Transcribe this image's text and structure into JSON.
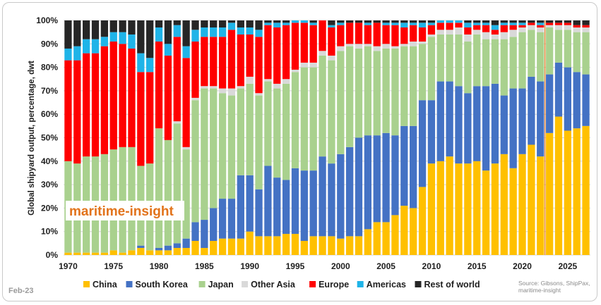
{
  "footer": {
    "date": "Feb-23",
    "source_line1": "Source: Gibsons, ShipPax,",
    "source_line2": "maritime-insight"
  },
  "watermark": "maritime-insight",
  "colors": {
    "China": "#ffc000",
    "South Korea": "#4472c4",
    "Japan": "#a9d18e",
    "Other Asia": "#d9d9d9",
    "Europe": "#ff0000",
    "Americas": "#1fb4e8",
    "Rest of world": "#262626"
  },
  "chart_data": {
    "type": "bar",
    "stacked": true,
    "ylabel": "Global shipyard output, percentage,  dwt",
    "xlabel": "",
    "ylim": [
      0,
      100
    ],
    "y_ticks": [
      "0%",
      "10%",
      "20%",
      "30%",
      "40%",
      "50%",
      "60%",
      "70%",
      "80%",
      "90%",
      "100%"
    ],
    "x_ticks": [
      "1970",
      "1975",
      "1980",
      "1985",
      "1990",
      "1995",
      "2000",
      "2005",
      "2010",
      "2015",
      "2020",
      "2025"
    ],
    "forecast_from": 2023,
    "legend_position": "bottom",
    "categories": [
      1970,
      1971,
      1972,
      1973,
      1974,
      1975,
      1976,
      1977,
      1978,
      1979,
      1980,
      1981,
      1982,
      1983,
      1984,
      1985,
      1986,
      1987,
      1988,
      1989,
      1990,
      1991,
      1992,
      1993,
      1994,
      1995,
      1996,
      1997,
      1998,
      1999,
      2000,
      2001,
      2002,
      2003,
      2004,
      2005,
      2006,
      2007,
      2008,
      2009,
      2010,
      2011,
      2012,
      2013,
      2014,
      2015,
      2016,
      2017,
      2018,
      2019,
      2020,
      2021,
      2022,
      2023,
      2024,
      2025,
      2026,
      2027
    ],
    "series": [
      {
        "name": "China",
        "values": [
          1,
          1,
          1,
          1,
          1,
          2,
          1,
          2,
          3,
          2,
          2,
          2,
          3,
          3,
          6,
          3,
          6,
          7,
          7,
          7,
          10,
          8,
          8,
          8,
          9,
          9,
          6,
          8,
          8,
          8,
          7,
          8,
          8,
          11,
          14,
          14,
          17,
          21,
          20,
          29,
          39,
          40,
          42,
          39,
          39,
          40,
          36,
          39,
          43,
          37,
          43,
          47,
          42,
          52,
          59,
          53,
          54,
          55
        ]
      },
      {
        "name": "South Korea",
        "values": [
          0,
          0,
          0,
          0,
          0,
          0,
          0,
          0,
          1,
          0,
          1,
          2,
          2,
          4,
          8,
          12,
          14,
          17,
          17,
          27,
          24,
          20,
          30,
          25,
          23,
          28,
          30,
          28,
          34,
          31,
          36,
          38,
          42,
          40,
          37,
          38,
          34,
          34,
          35,
          37,
          27,
          34,
          32,
          33,
          30,
          32,
          36,
          34,
          25,
          34,
          28,
          29,
          32,
          25,
          23,
          27,
          24,
          22
        ]
      },
      {
        "name": "Japan",
        "values": [
          39,
          38,
          41,
          41,
          42,
          43,
          45,
          44,
          34,
          37,
          51,
          45,
          51,
          38,
          52,
          56,
          51,
          45,
          44,
          37,
          39,
          40,
          36,
          38,
          41,
          41,
          44,
          44,
          43,
          44,
          44,
          43,
          38,
          38,
          36,
          36,
          37,
          34,
          34,
          24,
          27,
          20,
          20,
          22,
          22,
          22,
          20,
          19,
          24,
          22,
          24,
          20,
          21,
          20,
          14,
          16,
          17,
          18
        ]
      },
      {
        "name": "Other Asia",
        "values": [
          0,
          0,
          0,
          0,
          0,
          0,
          0,
          0,
          0,
          0,
          0,
          0,
          1,
          1,
          1,
          1,
          1,
          2,
          3,
          1,
          3,
          1,
          1,
          2,
          2,
          1,
          2,
          2,
          2,
          2,
          2,
          1,
          2,
          1,
          2,
          2,
          1,
          1,
          2,
          1,
          1,
          2,
          2,
          3,
          3,
          2,
          3,
          2,
          3,
          3,
          2,
          2,
          2,
          1,
          2,
          2,
          2,
          2
        ]
      },
      {
        "name": "Europe",
        "values": [
          43,
          44,
          44,
          44,
          46,
          46,
          44,
          42,
          40,
          39,
          37,
          36,
          36,
          38,
          24,
          21,
          21,
          22,
          25,
          22,
          18,
          24,
          23,
          24,
          23,
          20,
          17,
          16,
          13,
          12,
          9,
          9,
          9,
          8,
          10,
          8,
          9,
          7,
          7,
          6,
          4,
          3,
          3,
          2,
          3,
          2,
          3,
          2,
          3,
          2,
          1,
          1,
          1,
          1,
          1,
          1,
          1,
          1
        ]
      },
      {
        "name": "Americas",
        "values": [
          5,
          6,
          6,
          6,
          4,
          4,
          5,
          6,
          8,
          6,
          6,
          5,
          5,
          5,
          5,
          4,
          4,
          4,
          3,
          3,
          3,
          3,
          1,
          2,
          1,
          1,
          1,
          1,
          0,
          1,
          1,
          0,
          0,
          1,
          0,
          1,
          1,
          2,
          1,
          2,
          1,
          1,
          1,
          1,
          2,
          1,
          1,
          2,
          1,
          1,
          1,
          0,
          1,
          0,
          0,
          0,
          0,
          0
        ]
      },
      {
        "name": "Rest of world",
        "values": [
          12,
          11,
          8,
          8,
          7,
          5,
          5,
          6,
          14,
          16,
          3,
          10,
          2,
          11,
          4,
          3,
          3,
          3,
          1,
          3,
          3,
          4,
          1,
          1,
          1,
          0,
          0,
          1,
          0,
          2,
          1,
          1,
          1,
          1,
          1,
          1,
          1,
          1,
          1,
          1,
          1,
          0,
          0,
          0,
          1,
          1,
          1,
          2,
          1,
          1,
          1,
          1,
          1,
          1,
          1,
          1,
          2,
          2
        ]
      }
    ]
  }
}
